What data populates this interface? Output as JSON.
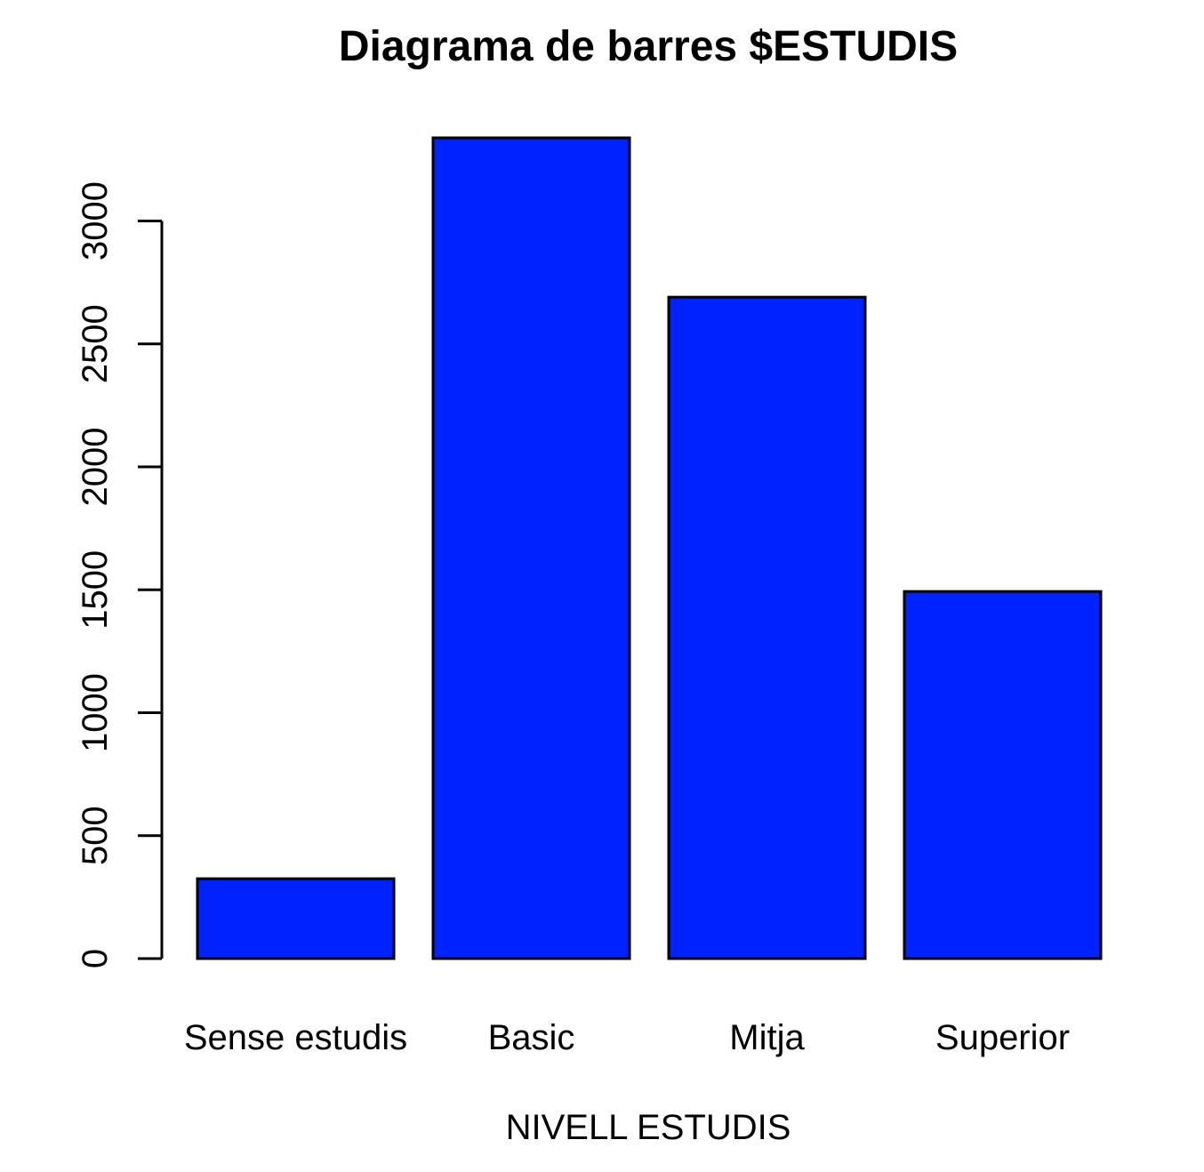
{
  "chart_data": {
    "type": "bar",
    "title": "Diagrama de barres $ESTUDIS",
    "xlabel": "NIVELL ESTUDIS",
    "ylabel": "",
    "categories": [
      "Sense estudis",
      "Basic",
      "Mitja",
      "Superior"
    ],
    "values": [
      325,
      3338,
      2690,
      1493
    ],
    "ylim": [
      0,
      3338
    ],
    "yticks": [
      0,
      500,
      1000,
      1500,
      2000,
      2500,
      3000
    ],
    "ytick_labels": [
      "0",
      "500",
      "1000",
      "1500",
      "2000",
      "2500",
      "3000"
    ],
    "grid": false,
    "legend": "none",
    "colors": {
      "bar_fill": "#0022ff",
      "bar_border": "#000000",
      "axis": "#000000",
      "background": "#ffffff"
    }
  }
}
